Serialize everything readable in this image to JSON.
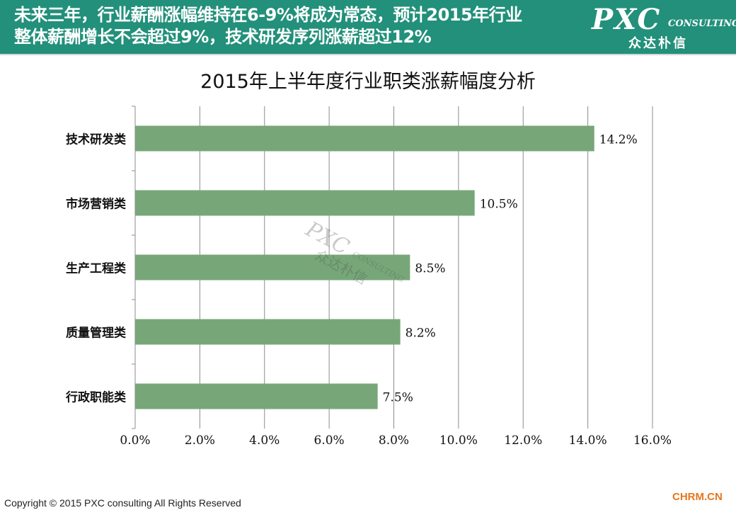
{
  "header": {
    "line1": "未来三年，行业薪酬涨幅维持在6-9%将成为常态，预计2015年行业",
    "line2": "整体薪酬增长不会超过9%，技术研发序列涨薪超过12%",
    "background": "#22907a"
  },
  "logo": {
    "brand": "PXC",
    "tagline": "CONSULTING",
    "chinese": "众达朴信"
  },
  "chart_data": {
    "type": "bar",
    "orientation": "horizontal",
    "title": "2015年上半年度行业职类涨薪幅度分析",
    "categories": [
      "技术研发类",
      "市场营销类",
      "生产工程类",
      "质量管理类",
      "行政职能类"
    ],
    "values": [
      14.2,
      10.5,
      8.5,
      8.2,
      7.5
    ],
    "value_labels": [
      "14.2%",
      "10.5%",
      "8.5%",
      "8.2%",
      "7.5%"
    ],
    "xlim": [
      0,
      16
    ],
    "x_ticks": [
      0,
      2,
      4,
      6,
      8,
      10,
      12,
      14,
      16
    ],
    "x_tick_labels": [
      "0.0%",
      "2.0%",
      "4.0%",
      "6.0%",
      "8.0%",
      "10.0%",
      "12.0%",
      "14.0%",
      "16.0%"
    ],
    "grid": "vertical",
    "bar_color": "#77a779",
    "xlabel": "",
    "ylabel": ""
  },
  "footer": {
    "copyright": "Copyright © 2015  PXC consulting All Rights Reserved",
    "site": "CHRM.CN"
  }
}
